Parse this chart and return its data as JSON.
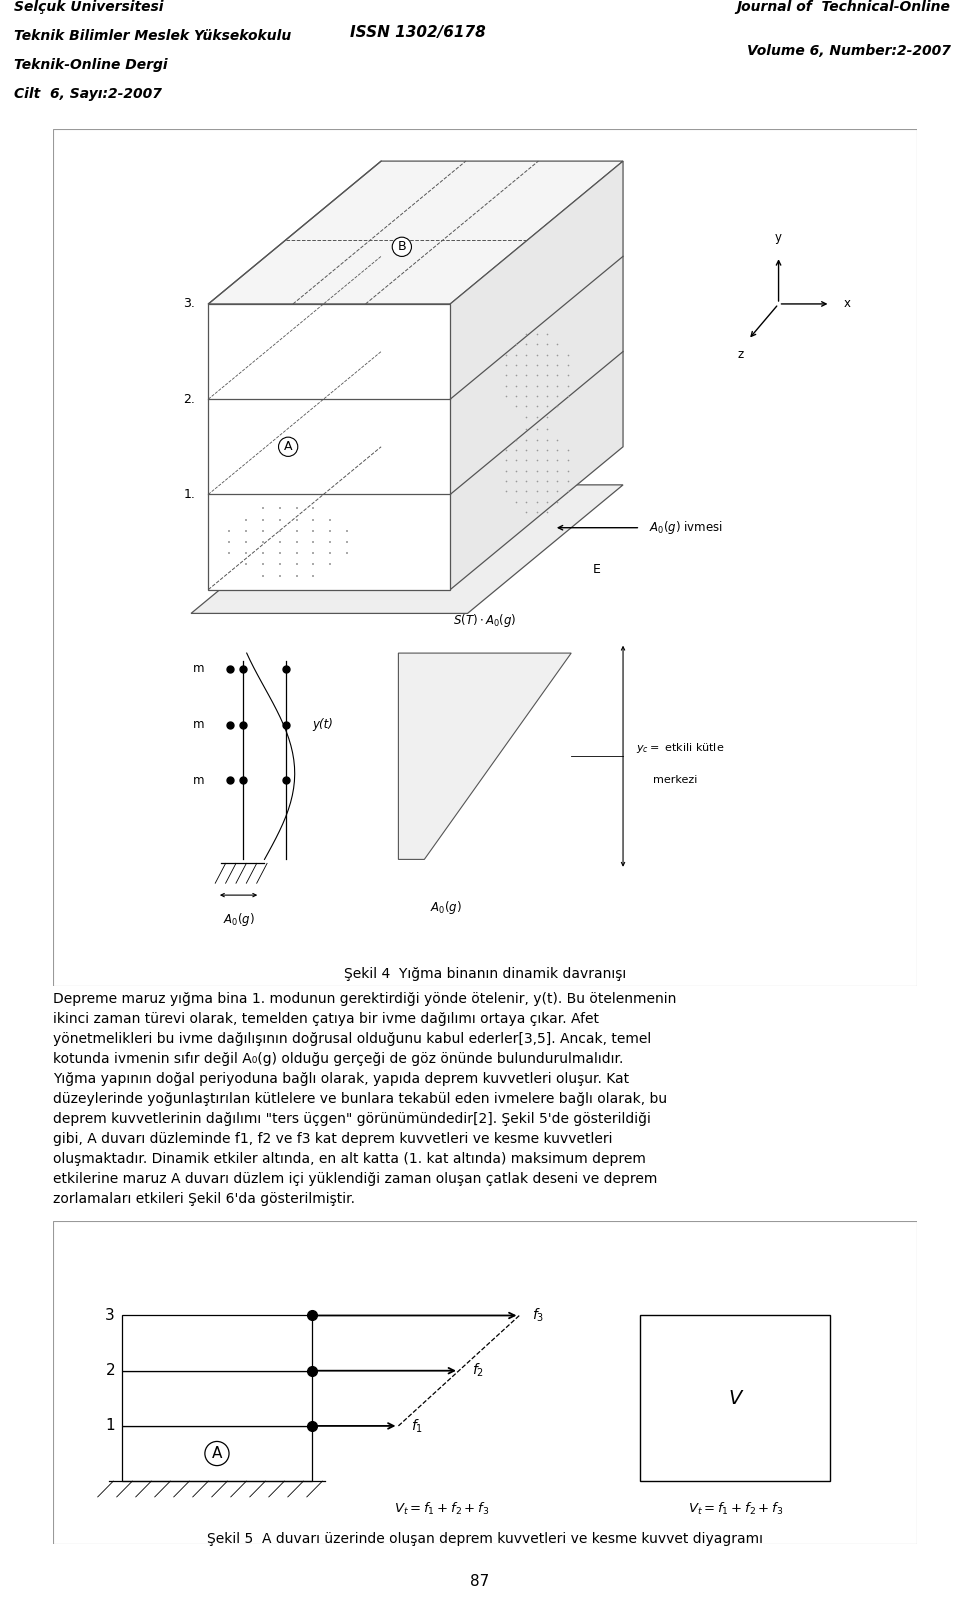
{
  "header_bg": "#d0d0d0",
  "header_left_lines": [
    "Selçuk Üniversitesi",
    "Teknik Bilimler Meslek Yüksekokulu",
    "Teknik-Online Dergi",
    "Cilt  6, Sayı:2-2007"
  ],
  "header_center": "ISSN 1302/6178",
  "header_right_lines": [
    "Journal of  Technical-Online",
    "Volume 6, Number:2-2007"
  ],
  "page_number": "87",
  "fig4_caption": "Şekil 4  Yığma binanın dinamik davranışı",
  "body_text_lines": [
    "Depreme maruz yığma bina 1. modunun gerektirdiği yönde ötelenir, y(t). Bu ötelenmenin",
    "ikinci zaman türevi olarak, temelden çatıya bir ivme dağılımı ortaya çıkar. Afet",
    "yönetmelikleri bu ivme dağılışının doğrusal olduğunu kabul ederler[3,5]. Ancak, temel",
    "kotunda ivmenin sıfır değil A₀(g) olduğu gerçeği de göz önünde bulundurulmalıdır.",
    "Yığma yapının doğal periyoduna bağlı olarak, yapıda deprem kuvvetleri oluşur. Kat",
    "düzeylerinde yoğunlaştırılan kütlelere ve bunlara tekabül eden ivmelere bağlı olarak, bu",
    "deprem kuvvetlerinin dağılımı \"ters üçgen\" görünümündedir[2]. Şekil 5'de gösterildiği",
    "gibi, A duvarı düzleminde f1, f2 ve f3 kat deprem kuvvetleri ve kesme kuvvetleri",
    "oluşmaktadır. Dinamik etkiler altında, en alt katta (1. kat altında) maksimum deprem",
    "etkilerine maruz A duvarı düzlem içi yüklendiği zaman oluşan çatlak deseni ve deprem",
    "zorlamaları etkileri Şekil 6'da gösterilmiştir."
  ],
  "fig5_caption": "Şekil 5  A duvarı üzerinde oluşan deprem kuvvetleri ve kesme kuvvet diyagramı"
}
